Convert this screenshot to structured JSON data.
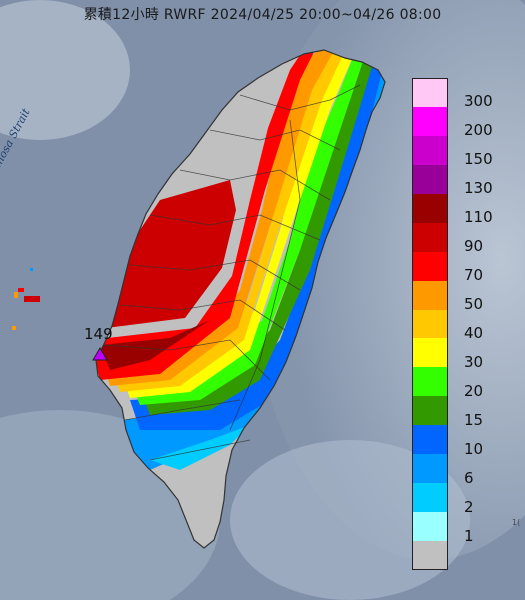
{
  "title": "累積12小時 RWRF 2024/04/25 20:00~04/26 08:00",
  "strait_label": "Formosa Strait",
  "station_value": "149",
  "corner_text": "1(",
  "legend": [
    {
      "label": "300",
      "color": "#ffc8f5"
    },
    {
      "label": "200",
      "color": "#ff00ff"
    },
    {
      "label": "150",
      "color": "#cc00cc"
    },
    {
      "label": "130",
      "color": "#990099"
    },
    {
      "label": "110",
      "color": "#990000"
    },
    {
      "label": "90",
      "color": "#cc0000"
    },
    {
      "label": "70",
      "color": "#ff0000"
    },
    {
      "label": "50",
      "color": "#ff9900"
    },
    {
      "label": "40",
      "color": "#ffc800"
    },
    {
      "label": "30",
      "color": "#ffff00"
    },
    {
      "label": "20",
      "color": "#33ff00"
    },
    {
      "label": "15",
      "color": "#339900"
    },
    {
      "label": "10",
      "color": "#0066ff"
    },
    {
      "label": "6",
      "color": "#0099ff"
    },
    {
      "label": "2",
      "color": "#00ccff"
    },
    {
      "label": "1",
      "color": "#99ffff"
    },
    {
      "label": "",
      "color": "#c0c0c0"
    }
  ]
}
